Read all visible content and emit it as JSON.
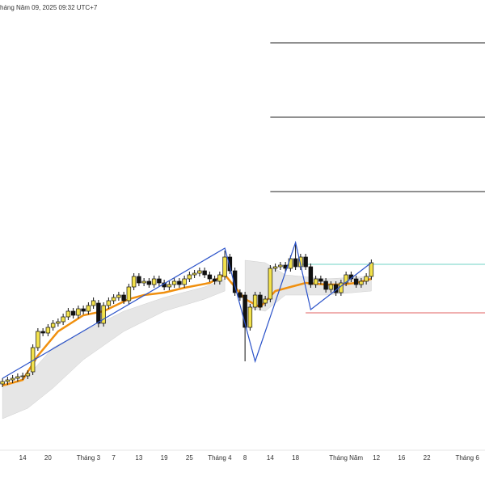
{
  "chart_data": {
    "type": "candlestick",
    "title": "háng Năm 09, 2025 09:32 UTC+7",
    "ylim": [
      0,
      555
    ],
    "categories": [
      null,
      null,
      null,
      null,
      "14",
      null,
      null,
      null,
      null,
      "20",
      null,
      null,
      null,
      null,
      null,
      null,
      null,
      "Tháng 3",
      null,
      null,
      null,
      null,
      "7",
      null,
      null,
      null,
      null,
      "13",
      null,
      null,
      null,
      null,
      "19",
      null,
      null,
      null,
      null,
      "25",
      null,
      null,
      null,
      null,
      null,
      "Tháng 4",
      null,
      null,
      null,
      null,
      "8",
      null,
      null,
      null,
      null,
      "14",
      null,
      null,
      null,
      null,
      "18",
      null,
      null,
      null,
      null,
      null,
      null,
      null,
      null,
      null,
      "Tháng Năm",
      null,
      null,
      null,
      null,
      null,
      "12",
      null,
      null,
      null,
      null,
      "16",
      null,
      null,
      null,
      null,
      "22",
      null,
      null,
      null,
      null,
      null,
      null,
      null,
      "Tháng 6",
      null,
      null,
      null
    ],
    "up_color": "#f3e24b",
    "down_color": "#111111",
    "open": [
      80,
      83,
      85,
      87,
      89,
      90,
      95,
      125,
      145,
      143,
      150,
      155,
      157,
      163,
      170,
      165,
      173,
      170,
      177,
      180,
      155,
      177,
      183,
      187,
      190,
      183,
      200,
      213,
      205,
      207,
      203,
      210,
      205,
      200,
      203,
      207,
      203,
      210,
      215,
      217,
      220,
      215,
      210,
      207,
      213,
      237,
      220,
      193,
      190,
      150,
      175,
      190,
      180,
      185,
      223,
      225,
      227,
      223,
      235,
      225,
      237,
      225,
      203,
      210,
      207,
      197,
      203,
      193,
      205,
      215,
      210,
      203,
      207,
      213,
      null,
      null,
      null,
      null,
      null,
      null,
      null,
      null,
      null,
      null,
      null,
      null,
      null,
      null,
      null,
      null,
      null,
      null,
      null,
      null,
      null,
      null
    ],
    "high": [
      87,
      89,
      91,
      93,
      94,
      97,
      129,
      149,
      149,
      154,
      159,
      161,
      167,
      174,
      174,
      177,
      177,
      181,
      187,
      184,
      181,
      187,
      191,
      194,
      194,
      204,
      217,
      217,
      211,
      211,
      214,
      214,
      209,
      207,
      211,
      211,
      214,
      219,
      221,
      224,
      224,
      219,
      214,
      219,
      245,
      241,
      224,
      197,
      194,
      179,
      194,
      194,
      189,
      227,
      229,
      231,
      231,
      239,
      255,
      241,
      241,
      229,
      214,
      214,
      211,
      207,
      207,
      209,
      219,
      219,
      214,
      211,
      217,
      234,
      null,
      null,
      null,
      null,
      null,
      null,
      null,
      null,
      null,
      null,
      null,
      null,
      null,
      null,
      null,
      null,
      null,
      null,
      null,
      null,
      null,
      null
    ],
    "low": [
      76,
      79,
      81,
      83,
      85,
      86,
      91,
      121,
      139,
      139,
      146,
      151,
      153,
      159,
      161,
      161,
      166,
      166,
      173,
      150,
      151,
      173,
      179,
      183,
      179,
      179,
      196,
      201,
      201,
      199,
      199,
      201,
      196,
      196,
      199,
      199,
      199,
      206,
      211,
      213,
      211,
      206,
      203,
      203,
      209,
      216,
      189,
      183,
      108,
      146,
      171,
      171,
      176,
      181,
      219,
      221,
      219,
      219,
      221,
      221,
      221,
      199,
      199,
      203,
      193,
      193,
      189,
      189,
      201,
      206,
      199,
      199,
      203,
      209,
      null,
      null,
      null,
      null,
      null,
      null,
      null,
      null,
      null,
      null,
      null,
      null,
      null,
      null,
      null,
      null,
      null,
      null,
      null,
      null,
      null,
      null
    ],
    "close": [
      83,
      85,
      87,
      89,
      90,
      93,
      125,
      145,
      143,
      150,
      155,
      157,
      163,
      170,
      165,
      173,
      170,
      177,
      183,
      155,
      177,
      183,
      187,
      190,
      183,
      200,
      213,
      205,
      207,
      203,
      210,
      205,
      200,
      203,
      207,
      203,
      210,
      215,
      217,
      220,
      215,
      210,
      207,
      215,
      237,
      220,
      193,
      187,
      150,
      175,
      190,
      175,
      185,
      223,
      225,
      227,
      223,
      235,
      225,
      237,
      225,
      203,
      210,
      207,
      197,
      203,
      193,
      205,
      215,
      210,
      203,
      207,
      213,
      230,
      null,
      null,
      null,
      null,
      null,
      null,
      null,
      null,
      null,
      null,
      null,
      null,
      null,
      null,
      null,
      null,
      null,
      null,
      null,
      null,
      null,
      null
    ],
    "band": {
      "color": "#e6e6e6",
      "x": [
        0,
        5,
        10,
        16,
        24,
        32,
        40,
        44,
        null,
        48,
        52,
        56,
        64,
        73
      ],
      "upper": [
        75,
        90,
        125,
        145,
        170,
        187,
        200,
        210,
        null,
        233,
        230,
        215,
        210,
        213
      ],
      "lower": [
        37,
        50,
        75,
        110,
        145,
        170,
        185,
        195,
        null,
        175,
        170,
        190,
        190,
        195
      ]
    },
    "ma": {
      "color": "#f0900f",
      "x": [
        0,
        4,
        7,
        11,
        16,
        20,
        25,
        28,
        32,
        36,
        41,
        44,
        48,
        51,
        54,
        57,
        60,
        64,
        67,
        70,
        73
      ],
      "values": [
        78,
        85,
        115,
        145,
        165,
        170,
        185,
        190,
        193,
        199,
        205,
        215,
        185,
        175,
        195,
        200,
        205,
        203,
        203,
        205,
        210
      ]
    },
    "zigzag": {
      "color": "#2a52c9",
      "x": [
        0,
        44,
        50,
        58,
        61,
        73
      ],
      "values": [
        87,
        248,
        108,
        255,
        172,
        230
      ]
    },
    "levels": [
      {
        "value": 502,
        "from": 53,
        "color": "#222222"
      },
      {
        "value": 410,
        "from": 53,
        "color": "#222222"
      },
      {
        "value": 318,
        "from": 53,
        "color": "#222222"
      },
      {
        "value": 228,
        "from": 59,
        "color": "#6fd3c4"
      },
      {
        "value": 168,
        "from": 60,
        "color": "#e06060"
      }
    ]
  }
}
